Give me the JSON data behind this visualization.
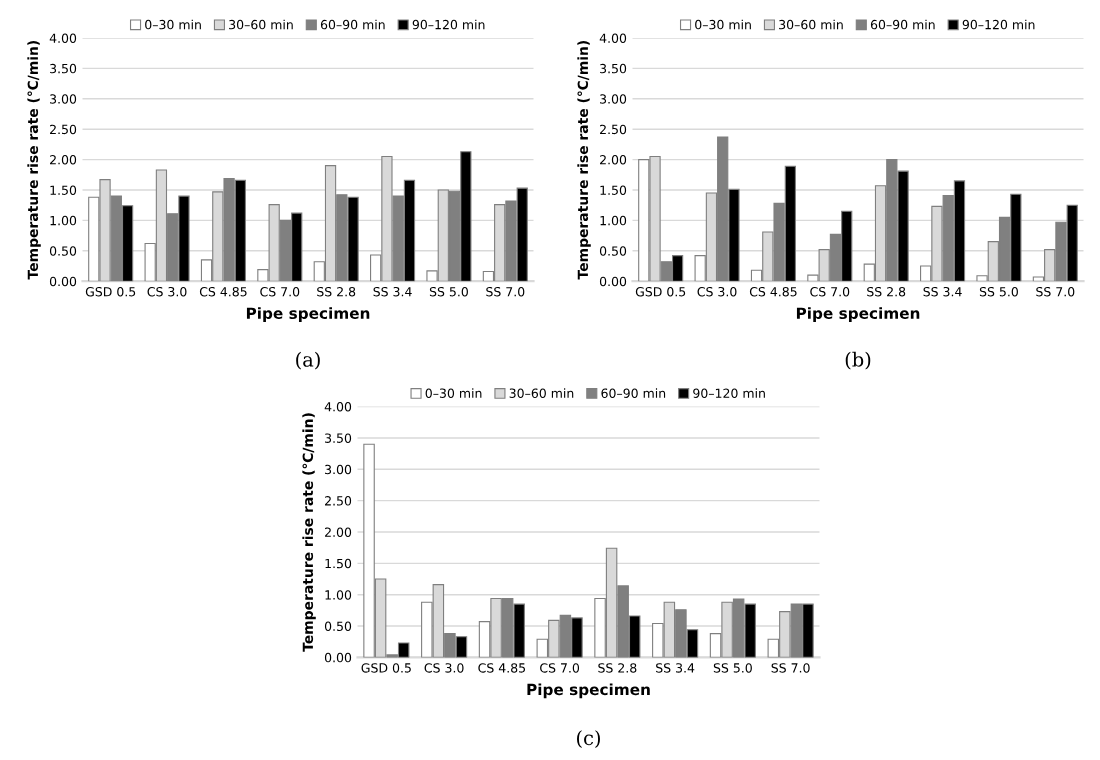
{
  "chart_data": [
    {
      "type": "bar",
      "annotations": [
        "(a)"
      ],
      "xlabel": "Pipe specimen",
      "ylabel": "Temperature rise rate (℃/min)",
      "categories": [
        "GSD 0.5",
        "CS 3.0",
        "CS 4.85",
        "CS 7.0",
        "SS 2.8",
        "SS 3.4",
        "SS 5.0",
        "SS 7.0"
      ],
      "series": [
        {
          "name": "0–30 min",
          "color": "#ffffff",
          "values": [
            1.38,
            0.62,
            0.35,
            0.19,
            0.32,
            0.43,
            0.17,
            0.16
          ]
        },
        {
          "name": "30–60 min",
          "color": "#d9d9d9",
          "values": [
            1.67,
            1.83,
            1.47,
            1.26,
            1.9,
            2.05,
            1.5,
            1.26
          ]
        },
        {
          "name": "60–90 min",
          "color": "#808080",
          "values": [
            1.4,
            1.11,
            1.69,
            1.0,
            1.42,
            1.4,
            1.48,
            1.32
          ]
        },
        {
          "name": "90–120 min",
          "color": "#000000",
          "values": [
            1.24,
            1.4,
            1.66,
            1.12,
            1.38,
            1.66,
            2.13,
            1.53
          ]
        }
      ],
      "ylim": [
        0,
        4
      ],
      "yticks": [
        {
          "value": 0,
          "label": "0.00"
        },
        {
          "value": 0.5,
          "label": "0.50"
        },
        {
          "value": 1,
          "label": "1.00"
        },
        {
          "value": 1.5,
          "label": "1.50"
        },
        {
          "value": 2,
          "label": "2.00"
        },
        {
          "value": 2.5,
          "label": "2.50"
        },
        {
          "value": 3,
          "label": "3.00"
        },
        {
          "value": 3.5,
          "label": "3.50"
        },
        {
          "value": 4,
          "label": "4.00"
        }
      ],
      "grid": "y",
      "legend": "top"
    },
    {
      "type": "bar",
      "annotations": [
        "(b)"
      ],
      "xlabel": "Pipe specimen",
      "ylabel": "Temperature rise rate (℃/min)",
      "categories": [
        "GSD 0.5",
        "CS 3.0",
        "CS 4.85",
        "CS 7.0",
        "SS 2.8",
        "SS 3.4",
        "SS 5.0",
        "SS 7.0"
      ],
      "series": [
        {
          "name": "0–30 min",
          "color": "#ffffff",
          "values": [
            2.0,
            0.42,
            0.18,
            0.1,
            0.28,
            0.25,
            0.09,
            0.07
          ]
        },
        {
          "name": "30–60 min",
          "color": "#d9d9d9",
          "values": [
            2.05,
            1.45,
            0.81,
            0.52,
            1.57,
            1.23,
            0.65,
            0.52
          ]
        },
        {
          "name": "60–90 min",
          "color": "#808080",
          "values": [
            0.32,
            2.37,
            1.28,
            0.77,
            2.0,
            1.41,
            1.05,
            0.97
          ]
        },
        {
          "name": "90–120 min",
          "color": "#000000",
          "values": [
            0.42,
            1.51,
            1.89,
            1.15,
            1.81,
            1.65,
            1.43,
            1.25
          ]
        }
      ],
      "ylim": [
        0,
        4
      ],
      "yticks": [
        {
          "value": 0,
          "label": "0.00"
        },
        {
          "value": 0.5,
          "label": "0.50"
        },
        {
          "value": 1,
          "label": "1.00"
        },
        {
          "value": 1.5,
          "label": "1.50"
        },
        {
          "value": 2,
          "label": "2.00"
        },
        {
          "value": 2.5,
          "label": "2.50"
        },
        {
          "value": 3,
          "label": "3.00"
        },
        {
          "value": 3.5,
          "label": "3.50"
        },
        {
          "value": 4,
          "label": "4.00"
        }
      ],
      "grid": "y",
      "legend": "top"
    },
    {
      "type": "bar",
      "annotations": [
        "(c)"
      ],
      "xlabel": "Pipe specimen",
      "ylabel": "Temperature rise rate (℃/min)",
      "categories": [
        "GSD 0.5",
        "CS 3.0",
        "CS 4.85",
        "CS 7.0",
        "SS 2.8",
        "SS 3.4",
        "SS 5.0",
        "SS 7.0"
      ],
      "series": [
        {
          "name": "0–30 min",
          "color": "#ffffff",
          "values": [
            3.4,
            0.88,
            0.57,
            0.29,
            0.94,
            0.54,
            0.38,
            0.29
          ]
        },
        {
          "name": "30–60 min",
          "color": "#d9d9d9",
          "values": [
            1.25,
            1.16,
            0.94,
            0.59,
            1.74,
            0.88,
            0.88,
            0.73
          ]
        },
        {
          "name": "60–90 min",
          "color": "#808080",
          "values": [
            0.04,
            0.38,
            0.94,
            0.67,
            1.14,
            0.76,
            0.93,
            0.85
          ]
        },
        {
          "name": "90–120 min",
          "color": "#000000",
          "values": [
            0.23,
            0.33,
            0.85,
            0.63,
            0.66,
            0.44,
            0.85,
            0.85
          ]
        }
      ],
      "ylim": [
        0,
        4
      ],
      "yticks": [
        {
          "value": 0,
          "label": "0.00"
        },
        {
          "value": 0.5,
          "label": "0.50"
        },
        {
          "value": 1,
          "label": "1.00"
        },
        {
          "value": 1.5,
          "label": "1.50"
        },
        {
          "value": 2,
          "label": "2.00"
        },
        {
          "value": 2.5,
          "label": "2.50"
        },
        {
          "value": 3,
          "label": "3.00"
        },
        {
          "value": 3.5,
          "label": "3.50"
        },
        {
          "value": 4,
          "label": "4.00"
        }
      ],
      "grid": "y",
      "legend": "top"
    }
  ]
}
